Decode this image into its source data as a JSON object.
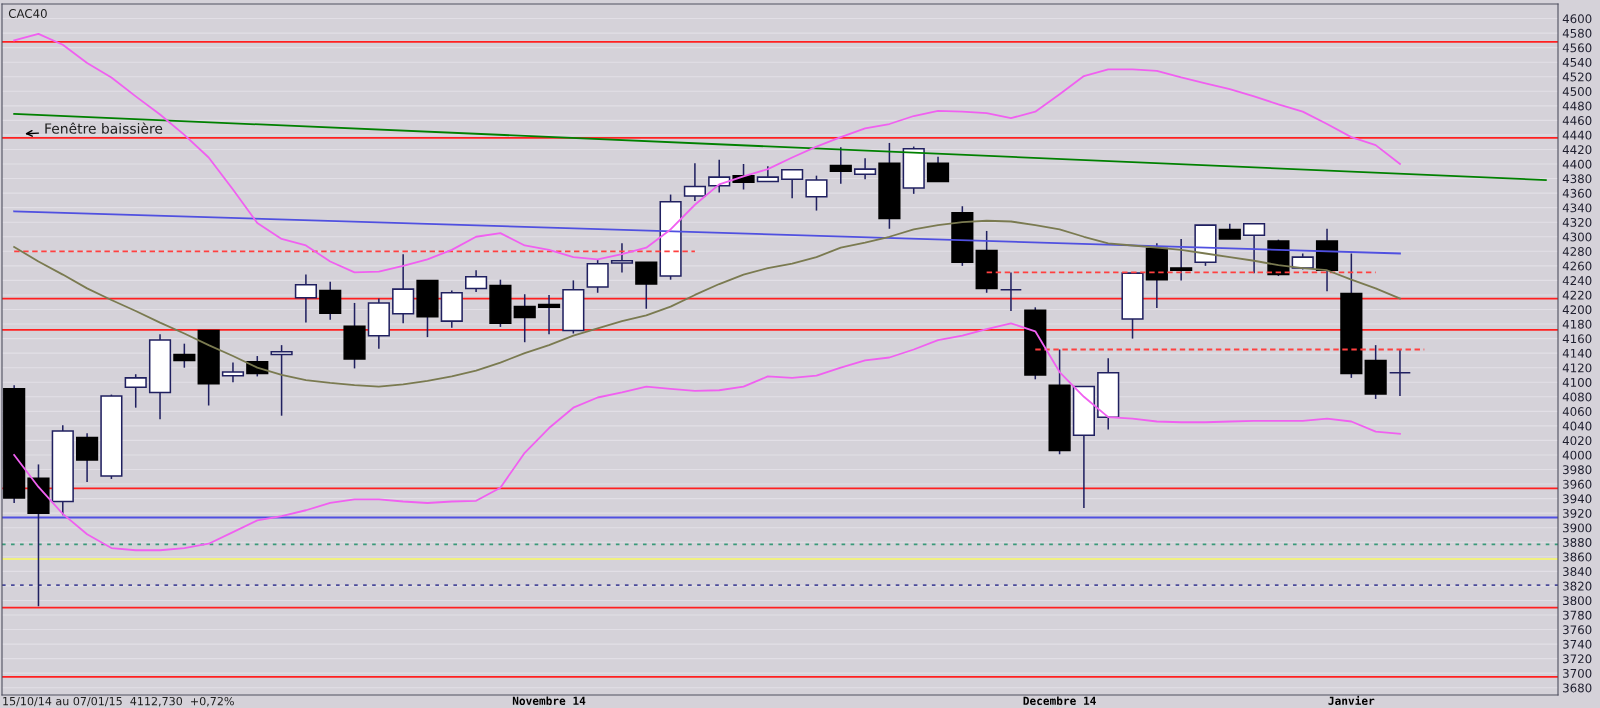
{
  "chart_data": {
    "type": "candlestick",
    "title": "CAC40",
    "categories": [
      null,
      null,
      null,
      null,
      null,
      null,
      null,
      null,
      null,
      null,
      null,
      null,
      null,
      null,
      null,
      null,
      null,
      null,
      null,
      null,
      null,
      null,
      "Novembre 14",
      null,
      null,
      null,
      null,
      null,
      null,
      null,
      null,
      null,
      null,
      null,
      null,
      null,
      null,
      null,
      null,
      null,
      null,
      null,
      null,
      "Decembre 14",
      null,
      null,
      null,
      null,
      null,
      null,
      null,
      null,
      null,
      null,
      null,
      "Janvier",
      null,
      null,
      null,
      null,
      null,
      null,
      null,
      null
    ],
    "ohlc": [
      [
        4091,
        4096,
        3934,
        3941
      ],
      [
        3968,
        3987,
        3792,
        3920
      ],
      [
        3936,
        4041,
        3917,
        4033
      ],
      [
        4024,
        4030,
        3963,
        3993
      ],
      [
        3971,
        4083,
        3967,
        4081
      ],
      [
        4093,
        4111,
        4065,
        4106
      ],
      [
        4086,
        4166,
        4049,
        4158
      ],
      [
        4138,
        4153,
        4120,
        4130
      ],
      [
        4171,
        4171,
        4068,
        4098
      ],
      [
        4109,
        4127,
        4100,
        4114
      ],
      [
        4128,
        4136,
        4108,
        4112
      ],
      [
        4138,
        4151,
        4054,
        4142
      ],
      [
        4216,
        4248,
        4182,
        4234
      ],
      [
        4226,
        4238,
        4186,
        4195
      ],
      [
        4177,
        4209,
        4119,
        4132
      ],
      [
        4164,
        4215,
        4146,
        4209
      ],
      [
        4194,
        4276,
        4181,
        4228
      ],
      [
        4240,
        4240,
        4162,
        4190
      ],
      [
        4184,
        4226,
        4175,
        4223
      ],
      [
        4229,
        4254,
        4224,
        4245
      ],
      [
        4233,
        4241,
        4176,
        4181
      ],
      [
        4204,
        4221,
        4155,
        4189
      ],
      [
        4207,
        4220,
        4166,
        4203
      ],
      [
        4171,
        4240,
        4167,
        4227
      ],
      [
        4231,
        4269,
        4223,
        4263
      ],
      [
        4264,
        4291,
        4251,
        4267
      ],
      [
        4265,
        4265,
        4201,
        4235
      ],
      [
        4246,
        4358,
        4241,
        4348
      ],
      [
        4356,
        4401,
        4349,
        4369
      ],
      [
        4370,
        4406,
        4361,
        4382
      ],
      [
        4384,
        4400,
        4365,
        4375
      ],
      [
        4376,
        4397,
        4376,
        4382
      ],
      [
        4379,
        4392,
        4353,
        4392
      ],
      [
        4355,
        4384,
        4336,
        4378
      ],
      [
        4398,
        4423,
        4373,
        4390
      ],
      [
        4386,
        4408,
        4379,
        4393
      ],
      [
        4401,
        4429,
        4311,
        4325
      ],
      [
        4367,
        4424,
        4359,
        4421
      ],
      [
        4401,
        4410,
        4376,
        4376
      ],
      [
        4333,
        4342,
        4260,
        4265
      ],
      [
        4281,
        4308,
        4223,
        4229
      ],
      [
        4227,
        4251,
        4198,
        4227
      ],
      [
        4199,
        4203,
        4104,
        4110
      ],
      [
        4096,
        4145,
        4001,
        4006
      ],
      [
        4027,
        4094,
        3927,
        4094
      ],
      [
        4052,
        4133,
        4035,
        4113
      ],
      [
        4187,
        4250,
        4160,
        4250
      ],
      [
        4284,
        4291,
        4202,
        4241
      ],
      [
        4257,
        4297,
        4240,
        4254
      ],
      [
        4265,
        4316,
        4260,
        4316
      ],
      [
        4310,
        4318,
        4297,
        4297
      ],
      [
        4302,
        4318,
        4250,
        4318
      ],
      [
        4294,
        4296,
        4246,
        4248
      ],
      [
        4257,
        4277,
        4255,
        4272
      ],
      [
        4294,
        4311,
        4225,
        4254
      ],
      [
        4222,
        4277,
        4106,
        4112
      ],
      [
        4130,
        4151,
        4077,
        4084
      ],
      [
        4113,
        4145,
        4081,
        4113
      ],
      null,
      null,
      null,
      null,
      null,
      null
    ],
    "series": [
      {
        "type": "line",
        "color": "#f060f0",
        "values": [
          4570,
          4579,
          4564,
          4539,
          4519,
          4493,
          4468,
          4440,
          4409,
          4365,
          4319,
          4297,
          4288,
          4266,
          4251,
          4252,
          4260,
          4269,
          4282,
          4300,
          4305,
          4288,
          4282,
          4272,
          4269,
          4276,
          4285,
          4310,
          4344,
          4372,
          4383,
          4393,
          4409,
          4424,
          4437,
          4449,
          4455,
          4466,
          4473,
          4472,
          4470,
          4463,
          4472,
          4496,
          4521,
          4530,
          4530,
          4528,
          4519,
          4511,
          4503,
          4493,
          4482,
          4472,
          4455,
          4437,
          4426,
          4400,
          null,
          null,
          null,
          null,
          null,
          null
        ]
      },
      {
        "type": "line",
        "color": "#f060f0",
        "values": [
          4000,
          3956,
          3919,
          3891,
          3872,
          3869,
          3869,
          3872,
          3878,
          3894,
          3910,
          3916,
          3924,
          3934,
          3939,
          3939,
          3936,
          3934,
          3936,
          3937,
          3955,
          4003,
          4037,
          4065,
          4079,
          4086,
          4094,
          4091,
          4088,
          4089,
          4094,
          4108,
          4106,
          4109,
          4120,
          4130,
          4134,
          4145,
          4158,
          4164,
          4173,
          4181,
          4170,
          4114,
          4080,
          4052,
          4050,
          4046,
          4045,
          4045,
          4046,
          4047,
          4047,
          4047,
          4050,
          4046,
          4032,
          4029,
          null,
          null,
          null,
          null,
          null,
          null
        ]
      },
      {
        "type": "line",
        "color": "#7a7a50",
        "values": [
          4286,
          4266,
          4248,
          4229,
          4213,
          4198,
          4182,
          4167,
          4151,
          4136,
          4120,
          4110,
          4103,
          4099,
          4096,
          4094,
          4097,
          4102,
          4108,
          4116,
          4127,
          4140,
          4151,
          4164,
          4174,
          4184,
          4192,
          4204,
          4220,
          4235,
          4248,
          4257,
          4263,
          4272,
          4285,
          4292,
          4300,
          4310,
          4316,
          4320,
          4322,
          4321,
          4316,
          4310,
          4300,
          4291,
          4288,
          4285,
          4282,
          4277,
          4272,
          4267,
          4261,
          4257,
          4254,
          4241,
          4229,
          4215,
          null,
          null,
          null,
          null,
          null,
          null
        ]
      },
      {
        "type": "line",
        "color": "#008000",
        "values": [
          4469,
          null,
          null,
          null,
          null,
          null,
          null,
          null,
          null,
          null,
          null,
          null,
          null,
          null,
          null,
          null,
          null,
          null,
          null,
          null,
          null,
          null,
          null,
          null,
          null,
          null,
          null,
          null,
          null,
          null,
          null,
          null,
          null,
          null,
          null,
          null,
          null,
          null,
          null,
          null,
          null,
          null,
          null,
          null,
          null,
          null,
          null,
          null,
          null,
          null,
          null,
          null,
          null,
          null,
          null,
          null,
          null,
          null,
          null,
          null,
          null,
          null,
          null,
          4378
        ]
      },
      {
        "type": "line",
        "color": "#5050e0",
        "values": [
          4335,
          null,
          null,
          null,
          null,
          null,
          null,
          null,
          null,
          null,
          null,
          null,
          null,
          null,
          null,
          null,
          null,
          null,
          null,
          null,
          null,
          null,
          null,
          null,
          null,
          null,
          null,
          null,
          null,
          null,
          null,
          null,
          null,
          null,
          null,
          null,
          null,
          null,
          null,
          null,
          null,
          null,
          null,
          null,
          null,
          null,
          null,
          null,
          null,
          null,
          null,
          null,
          null,
          null,
          null,
          null,
          null,
          4277,
          null,
          null,
          null,
          null,
          null,
          null
        ]
      },
      {
        "type": "line",
        "color": "#ff4040",
        "line_style": "dashed",
        "values": [
          4280,
          null,
          null,
          null,
          null,
          null,
          null,
          null,
          null,
          null,
          null,
          null,
          null,
          null,
          null,
          null,
          null,
          null,
          null,
          null,
          null,
          null,
          null,
          null,
          null,
          null,
          null,
          null,
          4280,
          null,
          null,
          null,
          null,
          null,
          null,
          null,
          null,
          null,
          null,
          null,
          null,
          null,
          null,
          null,
          null,
          null,
          null,
          null,
          null,
          null,
          null,
          null,
          null,
          null,
          null,
          null,
          null,
          null,
          null,
          null,
          null,
          null,
          null,
          null
        ]
      },
      {
        "type": "line",
        "color": "#ff4040",
        "line_style": "dashed",
        "values": [
          null,
          null,
          null,
          null,
          null,
          null,
          null,
          null,
          null,
          null,
          null,
          null,
          null,
          null,
          null,
          null,
          null,
          null,
          null,
          null,
          null,
          null,
          null,
          null,
          null,
          null,
          null,
          null,
          null,
          null,
          null,
          null,
          null,
          null,
          null,
          null,
          null,
          null,
          null,
          null,
          4251,
          null,
          null,
          null,
          null,
          null,
          null,
          null,
          null,
          null,
          null,
          null,
          null,
          null,
          null,
          null,
          4251,
          null,
          null,
          null,
          null,
          null,
          null,
          null
        ]
      },
      {
        "type": "line",
        "color": "#ff4040",
        "line_style": "dashed",
        "values": [
          null,
          null,
          null,
          null,
          null,
          null,
          null,
          null,
          null,
          null,
          null,
          null,
          null,
          null,
          null,
          null,
          null,
          null,
          null,
          null,
          null,
          null,
          null,
          null,
          null,
          null,
          null,
          null,
          null,
          null,
          null,
          null,
          null,
          null,
          null,
          null,
          null,
          null,
          null,
          null,
          null,
          null,
          4145,
          null,
          null,
          null,
          null,
          null,
          null,
          null,
          null,
          null,
          null,
          null,
          null,
          null,
          null,
          null,
          4145,
          null,
          null,
          null,
          null,
          null
        ]
      }
    ],
    "ref_lines": [
      {
        "axis": "y",
        "value": 4568,
        "color": "#ff2020",
        "line_style": "solid"
      },
      {
        "axis": "y",
        "value": 4436,
        "color": "#ff2020",
        "line_style": "solid"
      },
      {
        "axis": "y",
        "value": 4215,
        "color": "#ff2020",
        "line_style": "solid"
      },
      {
        "axis": "y",
        "value": 4172,
        "color": "#ff2020",
        "line_style": "solid"
      },
      {
        "axis": "y",
        "value": 3954,
        "color": "#ff2020",
        "line_style": "solid"
      },
      {
        "axis": "y",
        "value": 3914,
        "color": "#5050e0",
        "line_style": "solid"
      },
      {
        "axis": "y",
        "value": 3877,
        "color": "#3a9a7a",
        "line_style": "dotted"
      },
      {
        "axis": "y",
        "value": 3857,
        "color": "#f0f080",
        "line_style": "solid"
      },
      {
        "axis": "y",
        "value": 3821,
        "color": "#4a4a9a",
        "line_style": "dotted"
      },
      {
        "axis": "y",
        "value": 3790,
        "color": "#ff2020",
        "line_style": "solid"
      },
      {
        "axis": "y",
        "value": 3695,
        "color": "#ff2020",
        "line_style": "solid"
      }
    ],
    "annotations": [
      "Fenêtre baissière",
      "15/10/14 au 07/01/15  4112,730  +0,72%"
    ],
    "ylim": [
      3670,
      4620
    ],
    "yticks": [
      3680,
      3700,
      3720,
      3740,
      3760,
      3780,
      3800,
      3820,
      3840,
      3860,
      3880,
      3900,
      3920,
      3940,
      3960,
      3980,
      4000,
      4020,
      4040,
      4060,
      4080,
      4100,
      4120,
      4140,
      4160,
      4180,
      4200,
      4220,
      4240,
      4260,
      4280,
      4300,
      4320,
      4340,
      4360,
      4380,
      4400,
      4420,
      4440,
      4460,
      4480,
      4500,
      4520,
      4540,
      4560,
      4580,
      4600
    ],
    "grid": "y"
  }
}
